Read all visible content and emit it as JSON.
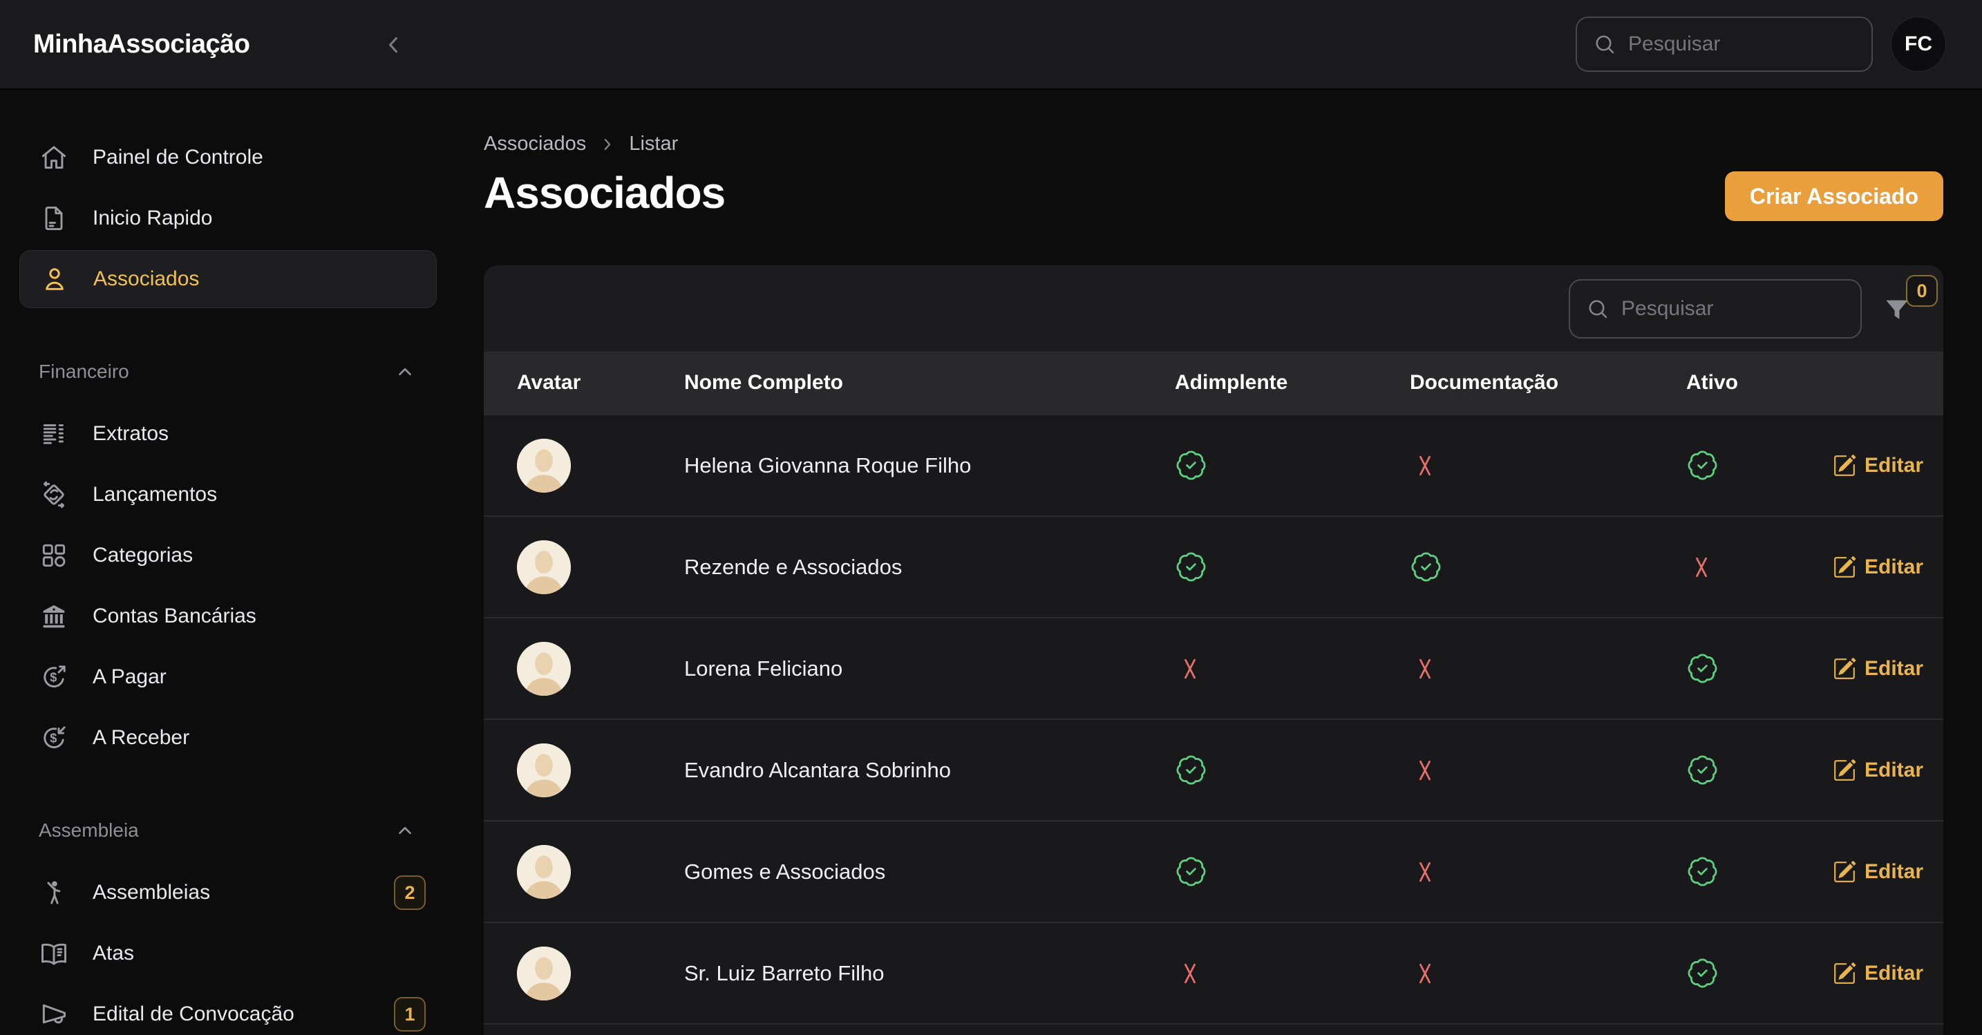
{
  "topbar": {
    "brand": "MinhaAssociação",
    "search_placeholder": "Pesquisar",
    "avatar_initials": "FC"
  },
  "sidebar": {
    "sections": [
      {
        "header": null,
        "items": [
          {
            "icon": "home-icon",
            "label": "Painel de Controle",
            "active": false,
            "badge": null
          },
          {
            "icon": "document-icon",
            "label": "Inicio Rapido",
            "active": false,
            "badge": null
          },
          {
            "icon": "user-icon",
            "label": "Associados",
            "active": true,
            "badge": null
          }
        ]
      },
      {
        "header": "Financeiro",
        "items": [
          {
            "icon": "statement-icon",
            "label": "Extratos",
            "active": false,
            "badge": null
          },
          {
            "icon": "transactions-icon",
            "label": "Lançamentos",
            "active": false,
            "badge": null
          },
          {
            "icon": "categories-grid-icon",
            "label": "Categorias",
            "active": false,
            "badge": null
          },
          {
            "icon": "bank-icon",
            "label": "Contas Bancárias",
            "active": false,
            "badge": null
          },
          {
            "icon": "money-out-icon",
            "label": "A Pagar",
            "active": false,
            "badge": null
          },
          {
            "icon": "money-in-icon",
            "label": "A Receber",
            "active": false,
            "badge": null
          }
        ]
      },
      {
        "header": "Assembleia",
        "items": [
          {
            "icon": "assembly-person-icon",
            "label": "Assembleias",
            "active": false,
            "badge": "2"
          },
          {
            "icon": "open-book-icon",
            "label": "Atas",
            "active": false,
            "badge": null
          },
          {
            "icon": "megaphone-icon",
            "label": "Edital de Convocação",
            "active": false,
            "badge": "1"
          }
        ]
      }
    ]
  },
  "main": {
    "breadcrumb": [
      "Associados",
      "Listar"
    ],
    "title": "Associados",
    "create_button": "Criar Associado",
    "table": {
      "search_placeholder": "Pesquisar",
      "filter_count": "0",
      "columns": [
        "Avatar",
        "Nome Completo",
        "Adimplente",
        "Documentação",
        "Ativo"
      ],
      "edit_label": "Editar",
      "rows": [
        {
          "name": "Helena Giovanna Roque Filho",
          "adimplente": true,
          "documentacao": false,
          "ativo": true
        },
        {
          "name": "Rezende e Associados",
          "adimplente": true,
          "documentacao": true,
          "ativo": false
        },
        {
          "name": "Lorena Feliciano",
          "adimplente": false,
          "documentacao": false,
          "ativo": true
        },
        {
          "name": "Evandro Alcantara Sobrinho",
          "adimplente": true,
          "documentacao": false,
          "ativo": true
        },
        {
          "name": "Gomes e Associados",
          "adimplente": true,
          "documentacao": false,
          "ativo": true
        },
        {
          "name": "Sr. Luiz Barreto Filho",
          "adimplente": false,
          "documentacao": false,
          "ativo": true
        }
      ]
    }
  },
  "colors": {
    "accent_orange": "#e9a03c",
    "accent_amber": "#e9b44c",
    "active_amber": "#f2c14e",
    "status_green": "#5dd181",
    "status_red": "#e96e6e"
  }
}
